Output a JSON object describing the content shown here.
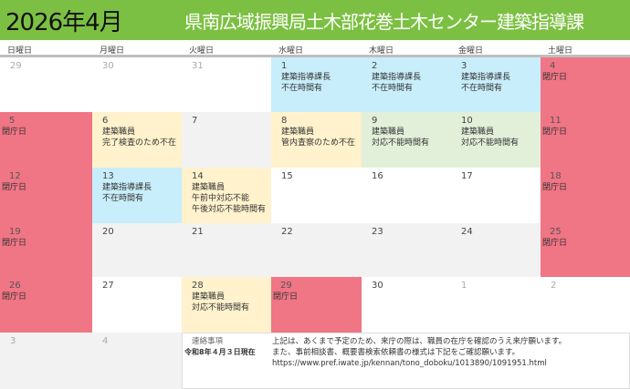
{
  "header": {
    "month": "2026年4月",
    "org": "県南広域振興局土木部花巻土木センター建築指導課"
  },
  "weekdays": [
    "日曜日",
    "月曜日",
    "火曜日",
    "水曜日",
    "木曜日",
    "金曜日",
    "土曜日"
  ],
  "colors": {
    "header": "#7cc043",
    "closed": "#f07585",
    "chief_absent": "#c8eefb",
    "staff_note": "#fff2cc",
    "staff_unavailable": "#e2efd9",
    "weekday_gray": "#f2f2f2"
  },
  "cells": [
    {
      "day": "29",
      "lines": [],
      "style": "white dim"
    },
    {
      "day": "30",
      "lines": [],
      "style": "white dim"
    },
    {
      "day": "31",
      "lines": [],
      "style": "white dim"
    },
    {
      "day": "1",
      "lines": [
        "建築指導課長",
        "不在時間有"
      ],
      "style": "blue"
    },
    {
      "day": "2",
      "lines": [
        "建築指導課長",
        "不在時間有"
      ],
      "style": "blue"
    },
    {
      "day": "3",
      "lines": [
        "建築指導課長",
        "不在時間有"
      ],
      "style": "blue"
    },
    {
      "day": "4",
      "lines": [
        "閉庁日"
      ],
      "style": "pink"
    },
    {
      "day": "5",
      "lines": [
        "閉庁日"
      ],
      "style": "pink"
    },
    {
      "day": "6",
      "lines": [
        "建築職員",
        "完了検査のため不在"
      ],
      "style": "yellow"
    },
    {
      "day": "7",
      "lines": [],
      "style": "gray"
    },
    {
      "day": "8",
      "lines": [
        "建築職員",
        "管内査察のため不在"
      ],
      "style": "yellow"
    },
    {
      "day": "9",
      "lines": [
        "建築職員",
        "対応不能時間有"
      ],
      "style": "green"
    },
    {
      "day": "10",
      "lines": [
        "建築職員",
        "対応不能時間有"
      ],
      "style": "green"
    },
    {
      "day": "11",
      "lines": [
        "閉庁日"
      ],
      "style": "pink"
    },
    {
      "day": "12",
      "lines": [
        "閉庁日"
      ],
      "style": "pink"
    },
    {
      "day": "13",
      "lines": [
        "建築指導課長",
        "不在時間有"
      ],
      "style": "blue"
    },
    {
      "day": "14",
      "lines": [
        "建築職員",
        "午前中対応不能",
        "午後対応不能時間有"
      ],
      "style": "yellow"
    },
    {
      "day": "15",
      "lines": [],
      "style": "white"
    },
    {
      "day": "16",
      "lines": [],
      "style": "white"
    },
    {
      "day": "17",
      "lines": [],
      "style": "white"
    },
    {
      "day": "18",
      "lines": [
        "閉庁日"
      ],
      "style": "pink"
    },
    {
      "day": "19",
      "lines": [
        "閉庁日"
      ],
      "style": "pink"
    },
    {
      "day": "20",
      "lines": [],
      "style": "gray"
    },
    {
      "day": "21",
      "lines": [],
      "style": "gray"
    },
    {
      "day": "22",
      "lines": [],
      "style": "gray"
    },
    {
      "day": "23",
      "lines": [],
      "style": "gray"
    },
    {
      "day": "24",
      "lines": [],
      "style": "gray"
    },
    {
      "day": "25",
      "lines": [
        "閉庁日"
      ],
      "style": "pink"
    },
    {
      "day": "26",
      "lines": [
        "閉庁日"
      ],
      "style": "pink"
    },
    {
      "day": "27",
      "lines": [],
      "style": "white"
    },
    {
      "day": "28",
      "lines": [
        "建築職員",
        "対応不能時間有"
      ],
      "style": "yellow"
    },
    {
      "day": "29",
      "lines": [
        "閉庁日"
      ],
      "style": "pink"
    },
    {
      "day": "30",
      "lines": [],
      "style": "white"
    },
    {
      "day": "1",
      "lines": [],
      "style": "white dim"
    },
    {
      "day": "2",
      "lines": [],
      "style": "white dim"
    },
    {
      "day": "3",
      "lines": [],
      "style": "gray dim"
    },
    {
      "day": "4",
      "lines": [],
      "style": "gray dim"
    }
  ],
  "notes": {
    "title": "連絡事項",
    "as_of": "令和8年４月３日現在",
    "lines": [
      "上記は、あくまで予定のため、来庁の際は、職員の在庁を確認のうえ来庁願います。",
      "また、事前相談書、概要書検索依頼書の様式は下記をご確認願います。",
      "https://www.pref.iwate.jp/kennan/tono_doboku/1013890/1091951.html"
    ]
  }
}
